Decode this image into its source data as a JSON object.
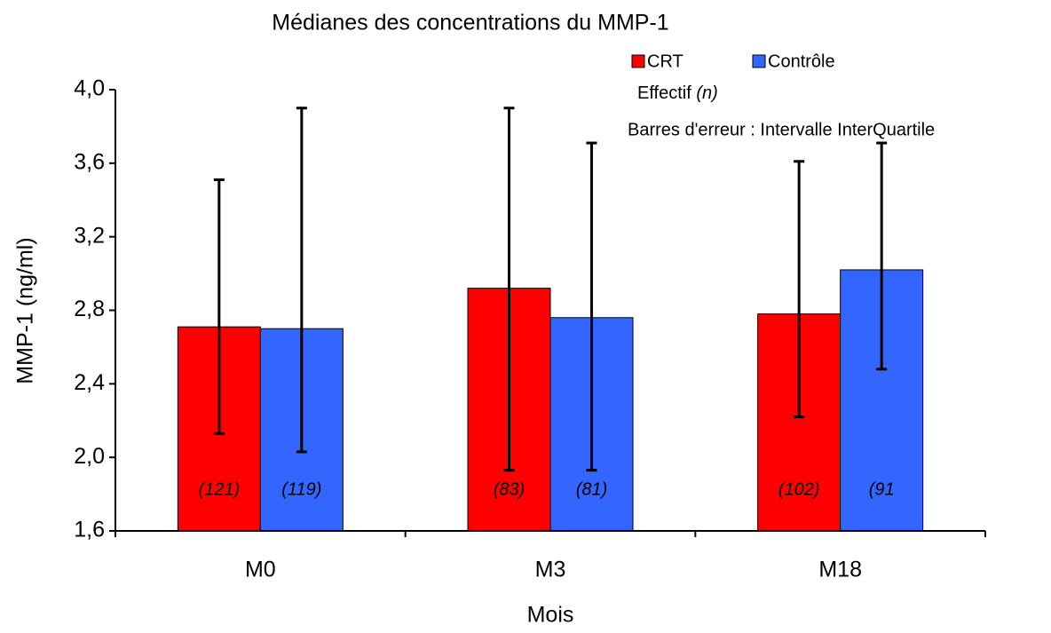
{
  "chart_data": {
    "type": "bar",
    "title": "Médianes des concentrations du MMP-1",
    "x_label": "Mois",
    "y_label": "MMP-1 (ng/ml)",
    "categories": [
      "M0",
      "M3",
      "M18"
    ],
    "series": [
      {
        "name": "CRT",
        "color": "#ff0000",
        "values": [
          2.71,
          2.92,
          2.78
        ],
        "low": [
          2.13,
          1.93,
          2.22
        ],
        "high": [
          3.51,
          3.9,
          3.61
        ],
        "n_labels": [
          "(121)",
          "(83)",
          "(102)"
        ]
      },
      {
        "name": "Contrôle",
        "color": "#3366ff",
        "values": [
          2.7,
          2.76,
          3.02
        ],
        "low": [
          2.03,
          1.93,
          2.48
        ],
        "high": [
          3.9,
          3.71,
          3.71
        ],
        "n_labels": [
          "(119)",
          "(81)",
          "(91"
        ]
      }
    ],
    "ylim": [
      1.6,
      4.0
    ],
    "yticks": [
      {
        "value": 1.6,
        "label": "1,6"
      },
      {
        "value": 2.0,
        "label": "2,0"
      },
      {
        "value": 2.4,
        "label": "2,4"
      },
      {
        "value": 2.8,
        "label": "2,8"
      },
      {
        "value": 3.2,
        "label": "3,2"
      },
      {
        "value": 3.6,
        "label": "3,6"
      },
      {
        "value": 4.0,
        "label": "4,0"
      }
    ],
    "effectif_label": "Effectif",
    "effectif_symbol": "(n)",
    "error_bar_note": "Barres d'erreur : Intervalle InterQuartile"
  }
}
